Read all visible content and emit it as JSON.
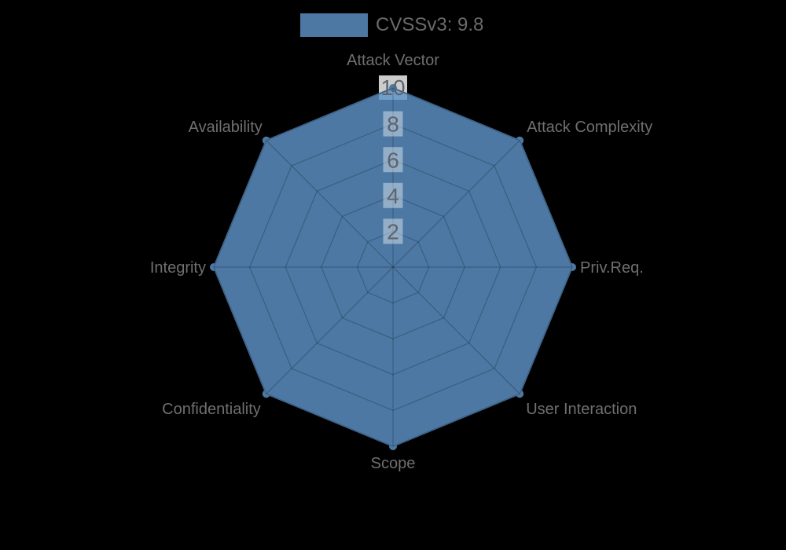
{
  "legend": {
    "label": "CVSSv3: 9.8"
  },
  "chart_data": {
    "type": "radar",
    "title": "",
    "legend_position": "top",
    "legend_entries": [
      "CVSSv3: 9.8"
    ],
    "categories": [
      "Attack Vector",
      "Attack Complexity",
      "Priv.Req.",
      "User Interaction",
      "Scope",
      "Confidentiality",
      "Integrity",
      "Availability"
    ],
    "series": [
      {
        "name": "CVSSv3: 9.8",
        "values": [
          10,
          10,
          10,
          10,
          10,
          10,
          10,
          10
        ]
      }
    ],
    "scale": {
      "min": 0,
      "max": 10,
      "ticks": [
        2,
        4,
        6,
        8,
        10
      ]
    },
    "grid": "polygonal-web"
  },
  "colors": {
    "background": "#000000",
    "series_fill": "rgba(93,146,199,0.82)",
    "series_solid": "#4d78a3",
    "grid_line": "rgba(0,0,0,0.22)",
    "tick_backdrop_inner": "rgba(255,255,255,0.40)",
    "tick_backdrop_outer": "rgba(255,255,255,0.80)",
    "tick_text": "#5c646c",
    "label_text": "#6f6f6f",
    "legend_text": "#6a6a6a"
  }
}
